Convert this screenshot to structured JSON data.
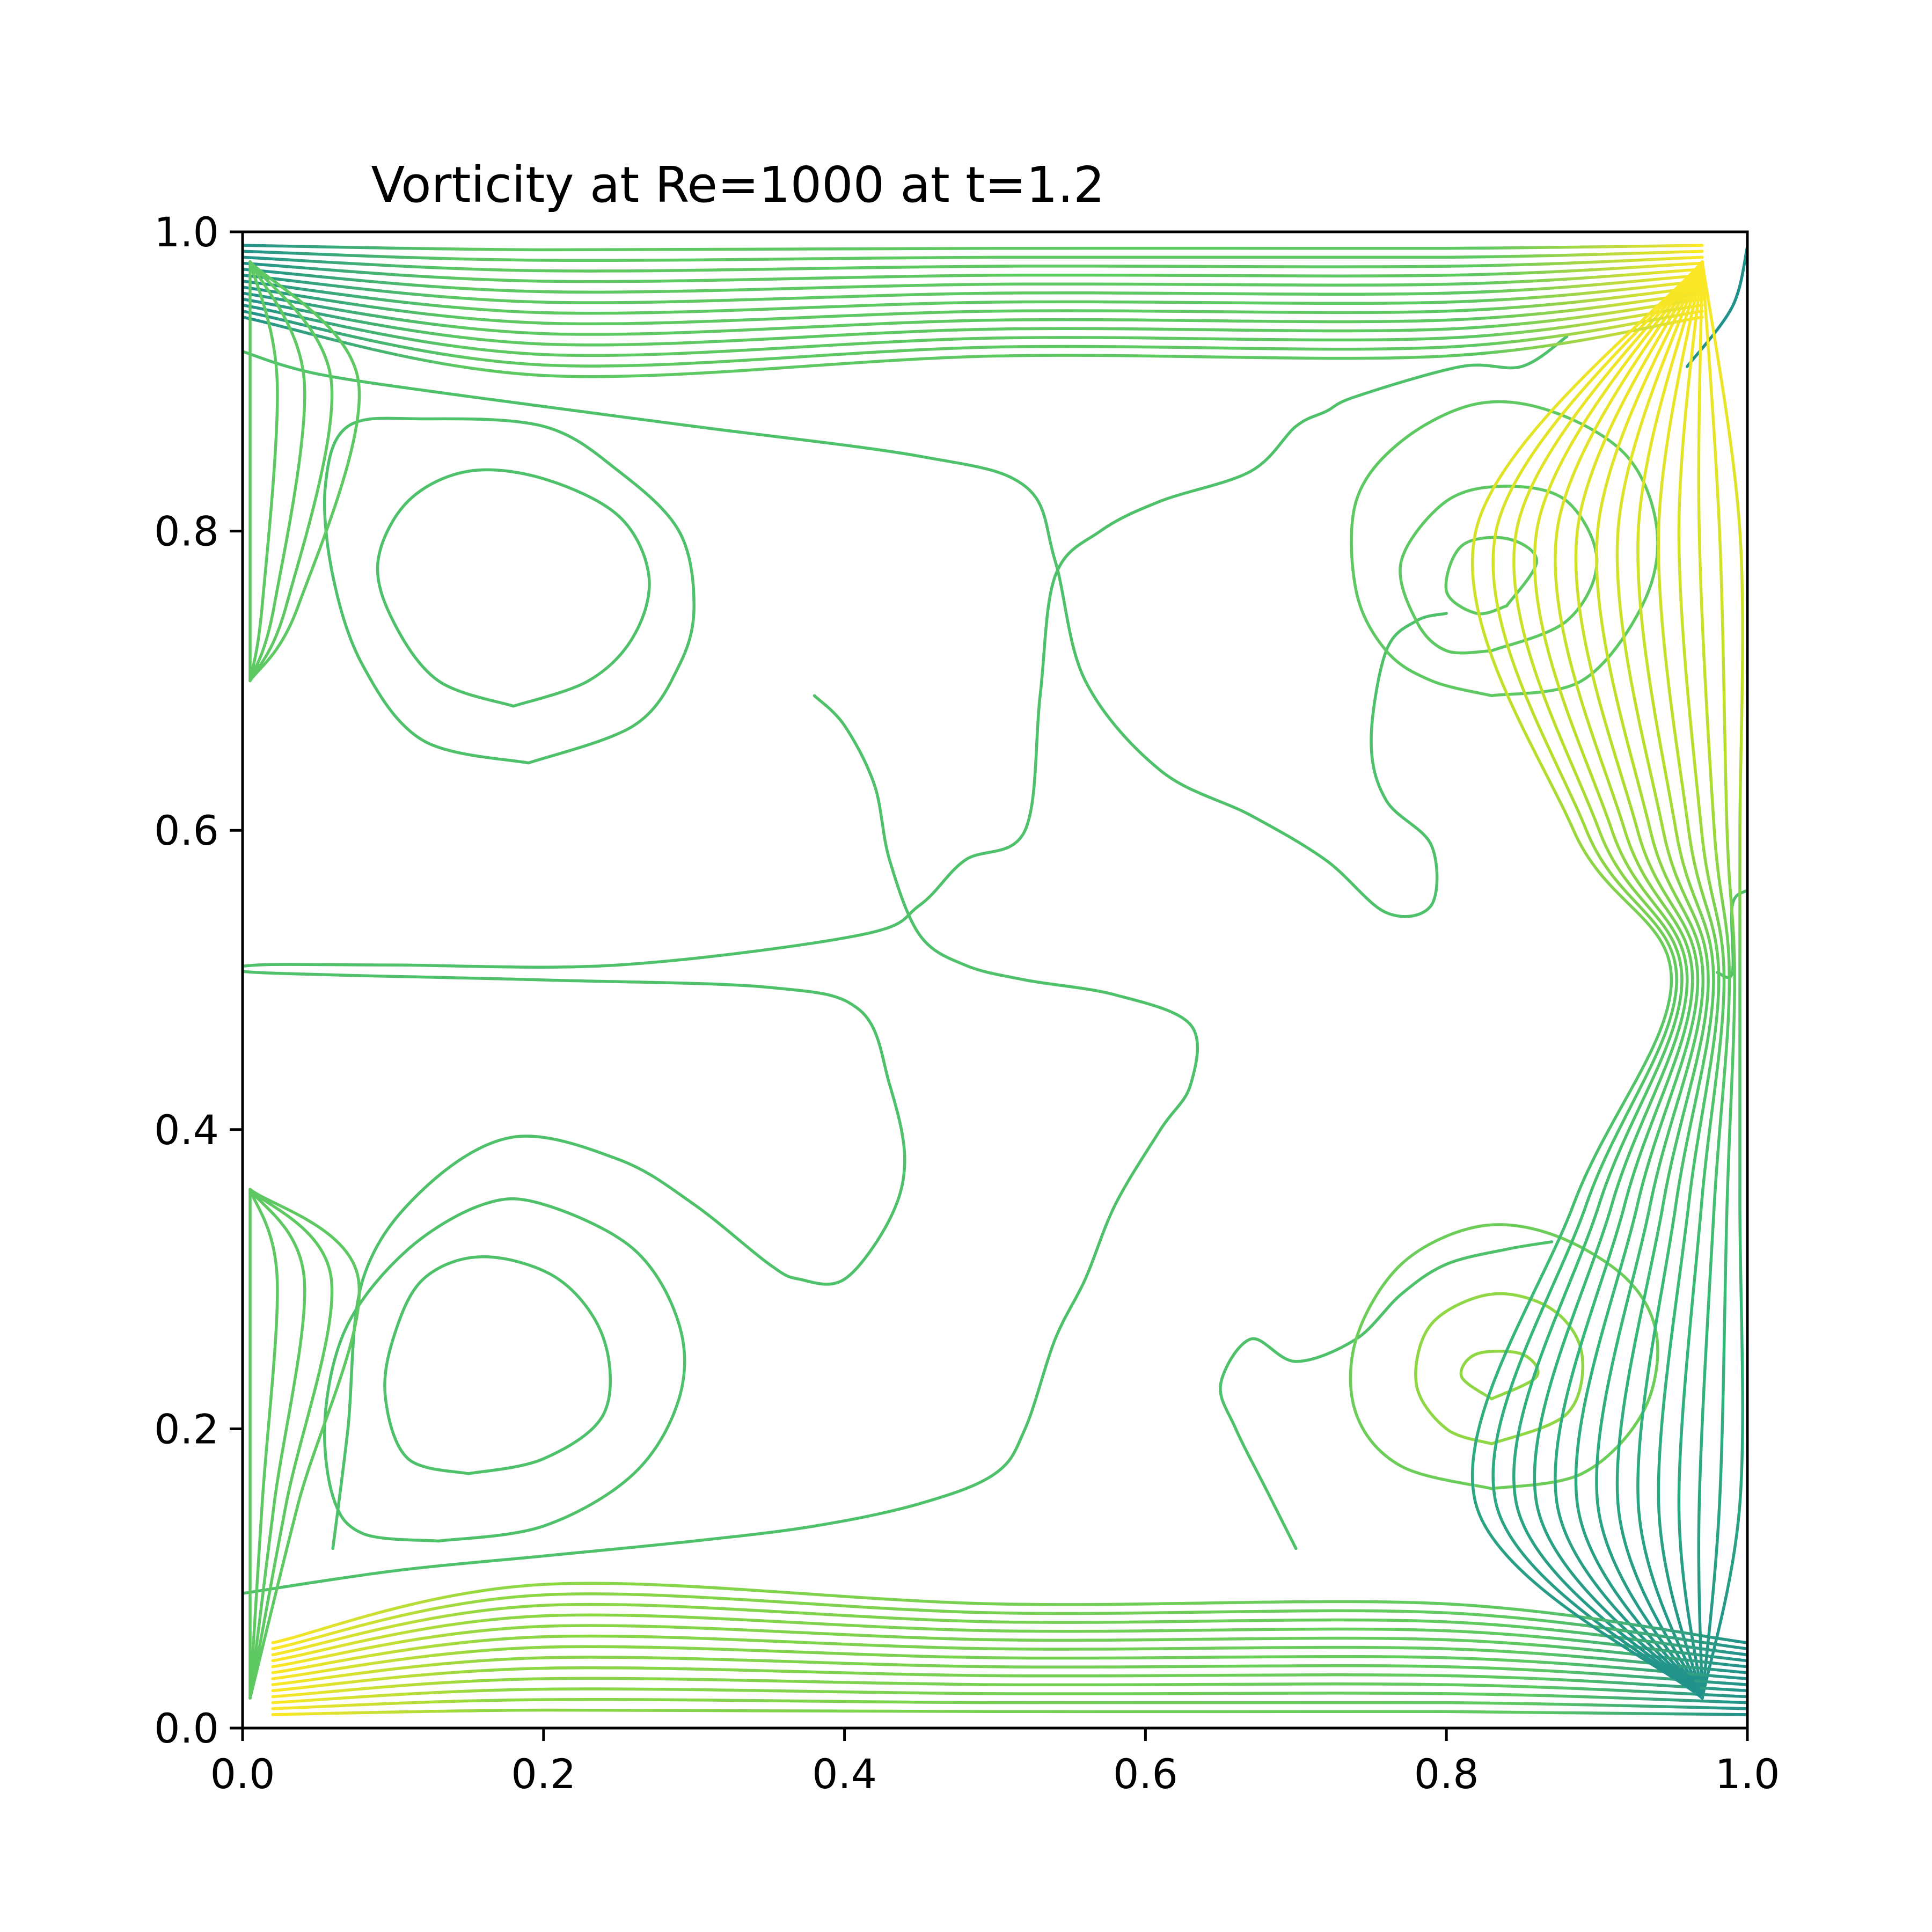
{
  "chart_data": {
    "type": "contour",
    "title": "Vorticity at Re=1000 at t=1.2",
    "xlabel": "",
    "ylabel": "",
    "xlim": [
      0.0,
      1.0
    ],
    "ylim": [
      0.0,
      1.0
    ],
    "xticks": [
      "0.0",
      "0.2",
      "0.4",
      "0.6",
      "0.8",
      "1.0"
    ],
    "yticks": [
      "0.0",
      "0.2",
      "0.4",
      "0.6",
      "0.8",
      "1.0"
    ],
    "grid": false,
    "colormap": "viridis",
    "colors": {
      "mid": "#5ec962",
      "light": "#8fd744",
      "bright": "#fde725",
      "dark": "#21918c",
      "deep": "#3b528b"
    },
    "contours": [
      {
        "name": "upper-left-vortex-inner",
        "color": "#4fc16b",
        "points": [
          [
            0.18,
            0.683
          ],
          [
            0.23,
            0.7
          ],
          [
            0.26,
            0.73
          ],
          [
            0.27,
            0.77
          ],
          [
            0.25,
            0.81
          ],
          [
            0.2,
            0.835
          ],
          [
            0.15,
            0.84
          ],
          [
            0.11,
            0.82
          ],
          [
            0.09,
            0.78
          ],
          [
            0.1,
            0.74
          ],
          [
            0.13,
            0.7
          ],
          [
            0.18,
            0.683
          ]
        ]
      },
      {
        "name": "upper-left-vortex-outer",
        "color": "#4fc16b",
        "points": [
          [
            0.19,
            0.645
          ],
          [
            0.26,
            0.67
          ],
          [
            0.29,
            0.71
          ],
          [
            0.3,
            0.75
          ],
          [
            0.29,
            0.8
          ],
          [
            0.25,
            0.84
          ],
          [
            0.2,
            0.87
          ],
          [
            0.12,
            0.875
          ],
          [
            0.07,
            0.87
          ],
          [
            0.055,
            0.83
          ],
          [
            0.06,
            0.77
          ],
          [
            0.08,
            0.71
          ],
          [
            0.12,
            0.66
          ],
          [
            0.19,
            0.645
          ]
        ]
      },
      {
        "name": "lower-left-vortex-inner",
        "color": "#4fc16b",
        "points": [
          [
            0.15,
            0.17
          ],
          [
            0.2,
            0.18
          ],
          [
            0.24,
            0.21
          ],
          [
            0.24,
            0.26
          ],
          [
            0.21,
            0.3
          ],
          [
            0.16,
            0.315
          ],
          [
            0.12,
            0.3
          ],
          [
            0.1,
            0.26
          ],
          [
            0.095,
            0.22
          ],
          [
            0.11,
            0.18
          ],
          [
            0.15,
            0.17
          ]
        ]
      },
      {
        "name": "lower-left-vortex-outer",
        "color": "#4fc16b",
        "points": [
          [
            0.13,
            0.125
          ],
          [
            0.2,
            0.135
          ],
          [
            0.26,
            0.17
          ],
          [
            0.29,
            0.22
          ],
          [
            0.29,
            0.27
          ],
          [
            0.26,
            0.32
          ],
          [
            0.2,
            0.35
          ],
          [
            0.16,
            0.35
          ],
          [
            0.11,
            0.32
          ],
          [
            0.07,
            0.27
          ],
          [
            0.055,
            0.21
          ],
          [
            0.06,
            0.155
          ],
          [
            0.08,
            0.13
          ],
          [
            0.13,
            0.125
          ]
        ]
      },
      {
        "name": "left-closed-loop",
        "color": "#4fc16b",
        "points": [
          [
            0.06,
            0.12
          ],
          [
            0.07,
            0.2
          ],
          [
            0.08,
            0.3
          ],
          [
            0.12,
            0.36
          ],
          [
            0.18,
            0.395
          ],
          [
            0.25,
            0.38
          ],
          [
            0.3,
            0.35
          ],
          [
            0.35,
            0.31
          ],
          [
            0.37,
            0.3
          ],
          [
            0.4,
            0.3
          ],
          [
            0.43,
            0.34
          ],
          [
            0.44,
            0.38
          ],
          [
            0.43,
            0.43
          ],
          [
            0.41,
            0.48
          ],
          [
            0.35,
            0.495
          ],
          [
            0.2,
            0.5
          ],
          [
            0.01,
            0.505
          ],
          [
            0.01,
            0.51
          ],
          [
            0.1,
            0.51
          ],
          [
            0.25,
            0.51
          ],
          [
            0.41,
            0.53
          ],
          [
            0.45,
            0.55
          ],
          [
            0.48,
            0.58
          ],
          [
            0.52,
            0.6
          ],
          [
            0.53,
            0.69
          ],
          [
            0.54,
            0.77
          ],
          [
            0.57,
            0.8
          ],
          [
            0.61,
            0.82
          ],
          [
            0.67,
            0.84
          ],
          [
            0.7,
            0.87
          ],
          [
            0.72,
            0.88
          ],
          [
            0.74,
            0.89
          ],
          [
            0.81,
            0.91
          ],
          [
            0.85,
            0.91
          ],
          [
            0.88,
            0.93
          ]
        ]
      },
      {
        "name": "top-long-contour",
        "color": "#4fc16b",
        "points": [
          [
            0.0,
            0.92
          ],
          [
            0.05,
            0.905
          ],
          [
            0.15,
            0.89
          ],
          [
            0.3,
            0.87
          ],
          [
            0.45,
            0.85
          ],
          [
            0.52,
            0.83
          ],
          [
            0.54,
            0.78
          ],
          [
            0.56,
            0.7
          ],
          [
            0.61,
            0.64
          ],
          [
            0.67,
            0.61
          ],
          [
            0.72,
            0.58
          ],
          [
            0.76,
            0.545
          ],
          [
            0.79,
            0.55
          ],
          [
            0.79,
            0.59
          ],
          [
            0.76,
            0.62
          ],
          [
            0.75,
            0.66
          ],
          [
            0.76,
            0.72
          ],
          [
            0.78,
            0.74
          ],
          [
            0.8,
            0.745
          ]
        ]
      },
      {
        "name": "middle-s-contour",
        "color": "#4fc16b",
        "points": [
          [
            0.38,
            0.69
          ],
          [
            0.4,
            0.67
          ],
          [
            0.42,
            0.63
          ],
          [
            0.43,
            0.58
          ],
          [
            0.45,
            0.53
          ],
          [
            0.48,
            0.51
          ],
          [
            0.52,
            0.5
          ],
          [
            0.58,
            0.49
          ],
          [
            0.63,
            0.47
          ],
          [
            0.63,
            0.43
          ],
          [
            0.61,
            0.4
          ],
          [
            0.58,
            0.35
          ],
          [
            0.56,
            0.3
          ],
          [
            0.54,
            0.26
          ],
          [
            0.52,
            0.2
          ],
          [
            0.5,
            0.17
          ],
          [
            0.45,
            0.15
          ],
          [
            0.38,
            0.135
          ],
          [
            0.3,
            0.125
          ],
          [
            0.2,
            0.115
          ],
          [
            0.1,
            0.105
          ],
          [
            0.0,
            0.09
          ]
        ]
      },
      {
        "name": "lower-right-lobe",
        "color": "#4fc16b",
        "points": [
          [
            0.7,
            0.12
          ],
          [
            0.68,
            0.16
          ],
          [
            0.66,
            0.2
          ],
          [
            0.65,
            0.23
          ],
          [
            0.67,
            0.26
          ],
          [
            0.7,
            0.245
          ],
          [
            0.74,
            0.26
          ],
          [
            0.77,
            0.29
          ],
          [
            0.8,
            0.31
          ],
          [
            0.84,
            0.32
          ],
          [
            0.87,
            0.325
          ]
        ]
      },
      {
        "name": "right-middle-contour",
        "color": "#4fc16b",
        "points": [
          [
            0.98,
            0.505
          ],
          [
            0.99,
            0.505
          ],
          [
            0.99,
            0.55
          ],
          [
            1.0,
            0.56
          ]
        ]
      },
      {
        "name": "right-vortex-upper-1",
        "color": "#5ec962",
        "points": [
          [
            0.84,
            0.75
          ],
          [
            0.86,
            0.78
          ],
          [
            0.84,
            0.795
          ],
          [
            0.81,
            0.79
          ],
          [
            0.8,
            0.76
          ],
          [
            0.82,
            0.745
          ],
          [
            0.84,
            0.75
          ]
        ]
      },
      {
        "name": "right-vortex-upper-2",
        "color": "#5ec962",
        "points": [
          [
            0.83,
            0.72
          ],
          [
            0.88,
            0.74
          ],
          [
            0.9,
            0.78
          ],
          [
            0.88,
            0.82
          ],
          [
            0.84,
            0.83
          ],
          [
            0.8,
            0.82
          ],
          [
            0.77,
            0.78
          ],
          [
            0.78,
            0.74
          ],
          [
            0.8,
            0.72
          ],
          [
            0.83,
            0.72
          ]
        ]
      },
      {
        "name": "right-vortex-upper-3",
        "color": "#5ec962",
        "points": [
          [
            0.83,
            0.69
          ],
          [
            0.89,
            0.7
          ],
          [
            0.93,
            0.75
          ],
          [
            0.94,
            0.8
          ],
          [
            0.92,
            0.85
          ],
          [
            0.87,
            0.88
          ],
          [
            0.82,
            0.885
          ],
          [
            0.77,
            0.86
          ],
          [
            0.74,
            0.82
          ],
          [
            0.74,
            0.76
          ],
          [
            0.76,
            0.72
          ],
          [
            0.79,
            0.7
          ],
          [
            0.83,
            0.69
          ]
        ]
      },
      {
        "name": "right-vortex-lower-1",
        "color": "#8fd744",
        "points": [
          [
            0.83,
            0.22
          ],
          [
            0.86,
            0.235
          ],
          [
            0.85,
            0.25
          ],
          [
            0.82,
            0.25
          ],
          [
            0.81,
            0.235
          ],
          [
            0.83,
            0.22
          ]
        ]
      },
      {
        "name": "right-vortex-lower-2",
        "color": "#8fd744",
        "points": [
          [
            0.83,
            0.19
          ],
          [
            0.88,
            0.21
          ],
          [
            0.89,
            0.25
          ],
          [
            0.87,
            0.28
          ],
          [
            0.83,
            0.29
          ],
          [
            0.79,
            0.27
          ],
          [
            0.78,
            0.23
          ],
          [
            0.8,
            0.2
          ],
          [
            0.83,
            0.19
          ]
        ]
      },
      {
        "name": "right-vortex-lower-3",
        "color": "#6cce59",
        "points": [
          [
            0.83,
            0.16
          ],
          [
            0.89,
            0.17
          ],
          [
            0.93,
            0.21
          ],
          [
            0.94,
            0.26
          ],
          [
            0.92,
            0.3
          ],
          [
            0.87,
            0.33
          ],
          [
            0.82,
            0.335
          ],
          [
            0.77,
            0.31
          ],
          [
            0.74,
            0.26
          ],
          [
            0.74,
            0.21
          ],
          [
            0.77,
            0.175
          ],
          [
            0.83,
            0.16
          ]
        ]
      },
      {
        "name": "right-wall-loop",
        "color": "#21918c",
        "points": [
          [
            0.96,
            0.91
          ],
          [
            0.99,
            0.95
          ],
          [
            1.0,
            0.99
          ]
        ]
      }
    ]
  }
}
